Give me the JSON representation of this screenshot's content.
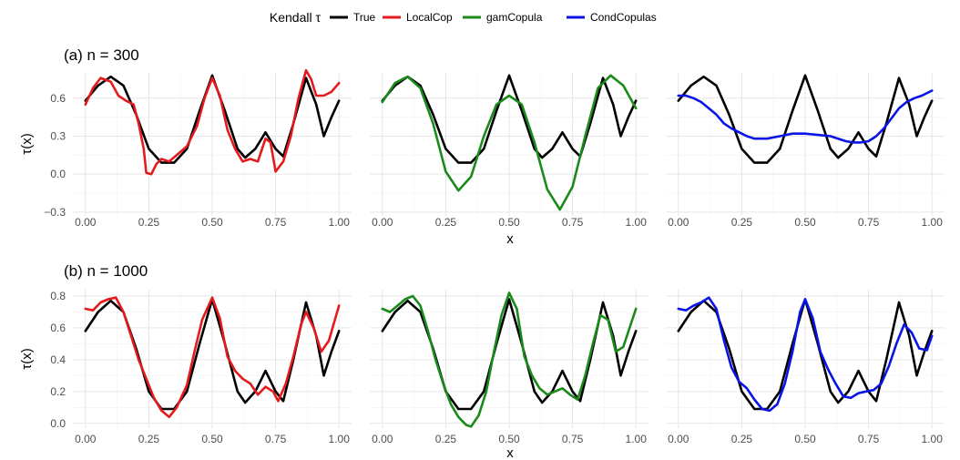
{
  "legend": {
    "title": "Kendall τ",
    "placement": "top",
    "entries": [
      {
        "name": "True",
        "color": "#000000"
      },
      {
        "name": "LocalCop",
        "color": "#e41a1c"
      },
      {
        "name": "gamCopula",
        "color": "#1a8a1a"
      },
      {
        "name": "CondCopulas",
        "color": "#0a14e6"
      }
    ]
  },
  "chart_data": {
    "type": "line",
    "grid": true,
    "xlabel": "x",
    "ylabel": "τ(x)",
    "xlim": [
      0,
      1
    ],
    "xticks": [
      "0.00",
      "0.25",
      "0.50",
      "0.75",
      "1.00"
    ],
    "rows": [
      {
        "title": "(a) n = 300",
        "ylim": [
          -0.33,
          0.8
        ],
        "yticks": [
          -0.3,
          0.0,
          0.3,
          0.6
        ],
        "ytick_labels": [
          "−0.3",
          "0.0",
          "0.3",
          "0.6"
        ],
        "panels": [
          {
            "series": [
              {
                "name": "True",
                "x": [
                  0.0,
                  0.05,
                  0.1,
                  0.15,
                  0.2,
                  0.25,
                  0.3,
                  0.35,
                  0.4,
                  0.45,
                  0.5,
                  0.55,
                  0.6,
                  0.63,
                  0.67,
                  0.71,
                  0.75,
                  0.78,
                  0.82,
                  0.87,
                  0.91,
                  0.94,
                  0.97,
                  1.0
                ],
                "y": [
                  0.58,
                  0.7,
                  0.77,
                  0.7,
                  0.47,
                  0.2,
                  0.09,
                  0.09,
                  0.2,
                  0.5,
                  0.78,
                  0.5,
                  0.2,
                  0.13,
                  0.2,
                  0.33,
                  0.2,
                  0.14,
                  0.4,
                  0.76,
                  0.55,
                  0.3,
                  0.45,
                  0.58
                ]
              },
              {
                "name": "LocalCop",
                "x": [
                  0.0,
                  0.03,
                  0.06,
                  0.1,
                  0.13,
                  0.16,
                  0.19,
                  0.21,
                  0.23,
                  0.24,
                  0.26,
                  0.28,
                  0.3,
                  0.33,
                  0.36,
                  0.4,
                  0.44,
                  0.47,
                  0.5,
                  0.53,
                  0.56,
                  0.59,
                  0.62,
                  0.65,
                  0.68,
                  0.71,
                  0.73,
                  0.75,
                  0.78,
                  0.81,
                  0.84,
                  0.87,
                  0.89,
                  0.91,
                  0.94,
                  0.97,
                  1.0
                ],
                "y": [
                  0.55,
                  0.68,
                  0.76,
                  0.73,
                  0.62,
                  0.58,
                  0.55,
                  0.4,
                  0.2,
                  0.01,
                  0.0,
                  0.08,
                  0.12,
                  0.1,
                  0.15,
                  0.22,
                  0.38,
                  0.6,
                  0.76,
                  0.62,
                  0.35,
                  0.2,
                  0.1,
                  0.12,
                  0.1,
                  0.28,
                  0.25,
                  0.02,
                  0.1,
                  0.3,
                  0.6,
                  0.82,
                  0.75,
                  0.62,
                  0.62,
                  0.65,
                  0.72
                ]
              }
            ]
          },
          {
            "series": [
              {
                "name": "True",
                "x": [
                  0.0,
                  0.05,
                  0.1,
                  0.15,
                  0.2,
                  0.25,
                  0.3,
                  0.35,
                  0.4,
                  0.45,
                  0.5,
                  0.55,
                  0.6,
                  0.63,
                  0.67,
                  0.71,
                  0.75,
                  0.78,
                  0.82,
                  0.87,
                  0.91,
                  0.94,
                  0.97,
                  1.0
                ],
                "y": [
                  0.58,
                  0.7,
                  0.77,
                  0.7,
                  0.47,
                  0.2,
                  0.09,
                  0.09,
                  0.2,
                  0.5,
                  0.78,
                  0.5,
                  0.2,
                  0.13,
                  0.2,
                  0.33,
                  0.2,
                  0.14,
                  0.4,
                  0.76,
                  0.55,
                  0.3,
                  0.45,
                  0.58
                ]
              },
              {
                "name": "gamCopula",
                "x": [
                  0.0,
                  0.05,
                  0.1,
                  0.15,
                  0.2,
                  0.25,
                  0.3,
                  0.35,
                  0.4,
                  0.45,
                  0.5,
                  0.55,
                  0.6,
                  0.65,
                  0.7,
                  0.75,
                  0.8,
                  0.85,
                  0.9,
                  0.95,
                  1.0
                ],
                "y": [
                  0.57,
                  0.72,
                  0.77,
                  0.68,
                  0.4,
                  0.02,
                  -0.13,
                  -0.02,
                  0.3,
                  0.55,
                  0.62,
                  0.55,
                  0.25,
                  -0.12,
                  -0.28,
                  -0.1,
                  0.3,
                  0.68,
                  0.78,
                  0.7,
                  0.52
                ]
              }
            ]
          },
          {
            "series": [
              {
                "name": "True",
                "x": [
                  0.0,
                  0.05,
                  0.1,
                  0.15,
                  0.2,
                  0.25,
                  0.3,
                  0.35,
                  0.4,
                  0.45,
                  0.5,
                  0.55,
                  0.6,
                  0.63,
                  0.67,
                  0.71,
                  0.75,
                  0.78,
                  0.82,
                  0.87,
                  0.91,
                  0.94,
                  0.97,
                  1.0
                ],
                "y": [
                  0.58,
                  0.7,
                  0.77,
                  0.7,
                  0.47,
                  0.2,
                  0.09,
                  0.09,
                  0.2,
                  0.5,
                  0.78,
                  0.5,
                  0.2,
                  0.13,
                  0.2,
                  0.33,
                  0.2,
                  0.14,
                  0.4,
                  0.76,
                  0.55,
                  0.3,
                  0.45,
                  0.58
                ]
              },
              {
                "name": "CondCopulas",
                "x": [
                  0.0,
                  0.03,
                  0.06,
                  0.09,
                  0.12,
                  0.15,
                  0.18,
                  0.21,
                  0.24,
                  0.27,
                  0.3,
                  0.35,
                  0.4,
                  0.45,
                  0.5,
                  0.55,
                  0.6,
                  0.63,
                  0.66,
                  0.69,
                  0.72,
                  0.75,
                  0.78,
                  0.81,
                  0.84,
                  0.87,
                  0.9,
                  0.93,
                  0.96,
                  1.0
                ],
                "y": [
                  0.62,
                  0.62,
                  0.6,
                  0.57,
                  0.52,
                  0.47,
                  0.4,
                  0.36,
                  0.33,
                  0.3,
                  0.28,
                  0.28,
                  0.3,
                  0.32,
                  0.32,
                  0.31,
                  0.3,
                  0.28,
                  0.26,
                  0.25,
                  0.25,
                  0.26,
                  0.3,
                  0.36,
                  0.44,
                  0.52,
                  0.57,
                  0.6,
                  0.62,
                  0.66
                ]
              }
            ]
          }
        ]
      },
      {
        "title": "(b) n = 1000",
        "ylim": [
          -0.03,
          0.84
        ],
        "yticks": [
          0.0,
          0.2,
          0.4,
          0.6,
          0.8
        ],
        "ytick_labels": [
          "0.0",
          "0.2",
          "0.4",
          "0.6",
          "0.8"
        ],
        "panels": [
          {
            "series": [
              {
                "name": "True",
                "x": [
                  0.0,
                  0.05,
                  0.1,
                  0.15,
                  0.2,
                  0.25,
                  0.3,
                  0.35,
                  0.4,
                  0.45,
                  0.5,
                  0.55,
                  0.6,
                  0.63,
                  0.67,
                  0.71,
                  0.75,
                  0.78,
                  0.82,
                  0.87,
                  0.91,
                  0.94,
                  0.97,
                  1.0
                ],
                "y": [
                  0.58,
                  0.7,
                  0.77,
                  0.7,
                  0.47,
                  0.2,
                  0.09,
                  0.09,
                  0.2,
                  0.5,
                  0.78,
                  0.5,
                  0.2,
                  0.13,
                  0.2,
                  0.33,
                  0.2,
                  0.14,
                  0.4,
                  0.76,
                  0.55,
                  0.3,
                  0.45,
                  0.58
                ]
              },
              {
                "name": "LocalCop",
                "x": [
                  0.0,
                  0.03,
                  0.06,
                  0.09,
                  0.12,
                  0.15,
                  0.18,
                  0.21,
                  0.24,
                  0.27,
                  0.3,
                  0.33,
                  0.36,
                  0.4,
                  0.43,
                  0.46,
                  0.5,
                  0.53,
                  0.56,
                  0.59,
                  0.62,
                  0.65,
                  0.68,
                  0.71,
                  0.74,
                  0.76,
                  0.79,
                  0.82,
                  0.85,
                  0.87,
                  0.9,
                  0.93,
                  0.96,
                  1.0
                ],
                "y": [
                  0.72,
                  0.71,
                  0.76,
                  0.78,
                  0.79,
                  0.7,
                  0.55,
                  0.4,
                  0.28,
                  0.16,
                  0.08,
                  0.04,
                  0.1,
                  0.24,
                  0.45,
                  0.65,
                  0.79,
                  0.66,
                  0.42,
                  0.33,
                  0.28,
                  0.25,
                  0.18,
                  0.23,
                  0.2,
                  0.14,
                  0.25,
                  0.42,
                  0.62,
                  0.7,
                  0.6,
                  0.45,
                  0.52,
                  0.74
                ]
              }
            ]
          },
          {
            "series": [
              {
                "name": "True",
                "x": [
                  0.0,
                  0.05,
                  0.1,
                  0.15,
                  0.2,
                  0.25,
                  0.3,
                  0.35,
                  0.4,
                  0.45,
                  0.5,
                  0.55,
                  0.6,
                  0.63,
                  0.67,
                  0.71,
                  0.75,
                  0.78,
                  0.82,
                  0.87,
                  0.91,
                  0.94,
                  0.97,
                  1.0
                ],
                "y": [
                  0.58,
                  0.7,
                  0.77,
                  0.7,
                  0.47,
                  0.2,
                  0.09,
                  0.09,
                  0.2,
                  0.5,
                  0.78,
                  0.5,
                  0.2,
                  0.13,
                  0.2,
                  0.33,
                  0.2,
                  0.14,
                  0.4,
                  0.76,
                  0.55,
                  0.3,
                  0.45,
                  0.58
                ]
              },
              {
                "name": "gamCopula",
                "x": [
                  0.0,
                  0.03,
                  0.06,
                  0.09,
                  0.12,
                  0.15,
                  0.18,
                  0.21,
                  0.24,
                  0.27,
                  0.3,
                  0.33,
                  0.35,
                  0.38,
                  0.41,
                  0.44,
                  0.47,
                  0.5,
                  0.53,
                  0.56,
                  0.59,
                  0.62,
                  0.65,
                  0.68,
                  0.71,
                  0.74,
                  0.77,
                  0.8,
                  0.83,
                  0.86,
                  0.89,
                  0.92,
                  0.95,
                  1.0
                ],
                "y": [
                  0.72,
                  0.7,
                  0.74,
                  0.78,
                  0.8,
                  0.74,
                  0.58,
                  0.4,
                  0.25,
                  0.12,
                  0.04,
                  -0.01,
                  -0.02,
                  0.05,
                  0.2,
                  0.45,
                  0.68,
                  0.82,
                  0.72,
                  0.42,
                  0.3,
                  0.22,
                  0.18,
                  0.2,
                  0.22,
                  0.18,
                  0.15,
                  0.3,
                  0.5,
                  0.68,
                  0.65,
                  0.45,
                  0.48,
                  0.72
                ]
              }
            ]
          },
          {
            "series": [
              {
                "name": "True",
                "x": [
                  0.0,
                  0.05,
                  0.1,
                  0.15,
                  0.2,
                  0.25,
                  0.3,
                  0.35,
                  0.4,
                  0.45,
                  0.5,
                  0.55,
                  0.6,
                  0.63,
                  0.67,
                  0.71,
                  0.75,
                  0.78,
                  0.82,
                  0.87,
                  0.91,
                  0.94,
                  0.97,
                  1.0
                ],
                "y": [
                  0.58,
                  0.7,
                  0.77,
                  0.7,
                  0.47,
                  0.2,
                  0.09,
                  0.09,
                  0.2,
                  0.5,
                  0.78,
                  0.5,
                  0.2,
                  0.13,
                  0.2,
                  0.33,
                  0.2,
                  0.14,
                  0.4,
                  0.76,
                  0.55,
                  0.3,
                  0.45,
                  0.58
                ]
              },
              {
                "name": "CondCopulas",
                "x": [
                  0.0,
                  0.03,
                  0.06,
                  0.09,
                  0.12,
                  0.15,
                  0.18,
                  0.21,
                  0.24,
                  0.27,
                  0.3,
                  0.33,
                  0.36,
                  0.39,
                  0.42,
                  0.45,
                  0.48,
                  0.5,
                  0.53,
                  0.56,
                  0.59,
                  0.62,
                  0.65,
                  0.68,
                  0.71,
                  0.74,
                  0.77,
                  0.8,
                  0.83,
                  0.86,
                  0.89,
                  0.92,
                  0.95,
                  0.98,
                  1.0
                ],
                "y": [
                  0.72,
                  0.71,
                  0.74,
                  0.76,
                  0.79,
                  0.72,
                  0.52,
                  0.35,
                  0.26,
                  0.22,
                  0.15,
                  0.09,
                  0.08,
                  0.12,
                  0.25,
                  0.45,
                  0.7,
                  0.78,
                  0.66,
                  0.45,
                  0.34,
                  0.25,
                  0.17,
                  0.16,
                  0.19,
                  0.2,
                  0.21,
                  0.25,
                  0.36,
                  0.5,
                  0.62,
                  0.57,
                  0.47,
                  0.46,
                  0.55
                ]
              }
            ]
          }
        ]
      }
    ]
  }
}
